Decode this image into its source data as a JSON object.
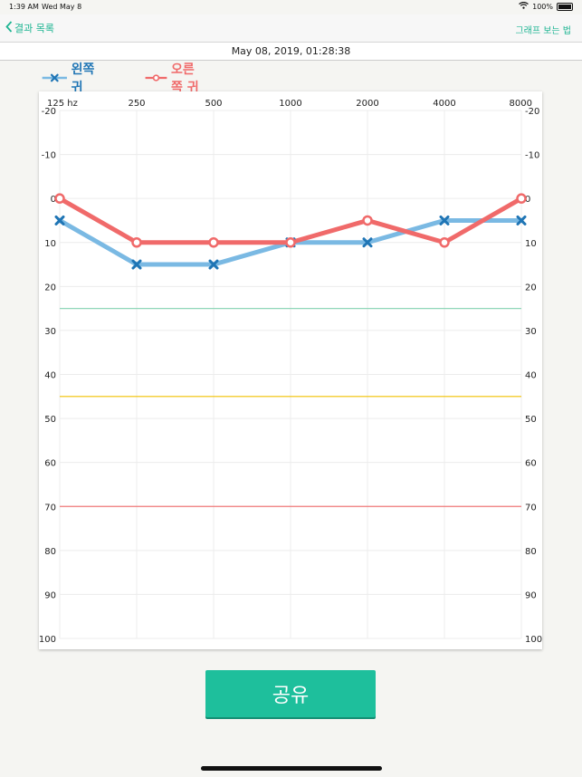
{
  "status_bar": {
    "time": "1:39 AM",
    "date": "Wed May 8",
    "battery": "100%"
  },
  "nav": {
    "back_label": "결과 목록",
    "help_label": "그래프 보는 법"
  },
  "header": {
    "datetime": "May 08, 2019, 01:28:38"
  },
  "legend": [
    {
      "label": "왼쪽 귀",
      "color": "#7ab9e3",
      "marker_color": "#1f75b5",
      "marker": "x"
    },
    {
      "label": "오른쪽 귀",
      "color": "#f06a6a",
      "marker_color": "#f06a6a",
      "marker": "o"
    }
  ],
  "share_label": "공유",
  "chart_data": {
    "type": "line",
    "categories": [
      "125 hz",
      "250",
      "500",
      "1000",
      "2000",
      "4000",
      "8000"
    ],
    "y_ticks": [
      "-20",
      "-10",
      "0",
      "10",
      "20",
      "30",
      "40",
      "50",
      "60",
      "70",
      "80",
      "90",
      "100"
    ],
    "ylim": [
      -20,
      100
    ],
    "y_inverted": true,
    "grid": true,
    "legend_position": "top-left",
    "series": [
      {
        "name": "왼쪽 귀",
        "values": [
          5,
          15,
          15,
          10,
          10,
          5,
          5
        ],
        "color": "#7ab9e3",
        "marker": "x"
      },
      {
        "name": "오른쪽 귀",
        "values": [
          0,
          10,
          10,
          10,
          5,
          10,
          0
        ],
        "color": "#f06a6a",
        "marker": "o"
      }
    ],
    "reference_lines": [
      {
        "y": 25,
        "color": "#8fd6b8"
      },
      {
        "y": 45,
        "color": "#f2c200"
      },
      {
        "y": 70,
        "color": "#f07878"
      }
    ]
  }
}
